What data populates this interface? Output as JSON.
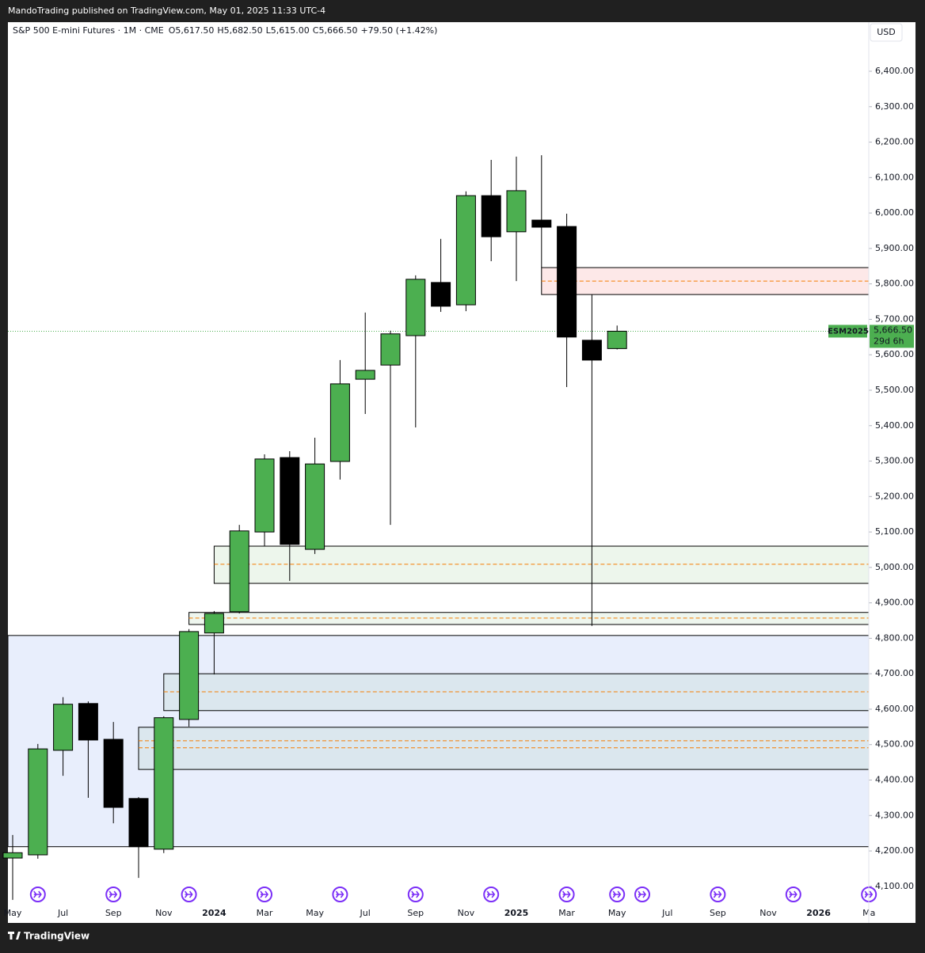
{
  "header": {
    "publisher": "MandoTrading published on TradingView.com, May 01, 2025 11:33 UTC-4"
  },
  "footer": {
    "brand": "TradingView"
  },
  "chart_data": {
    "type": "candlestick",
    "symbol_line": "S&P 500 E-mini Futures · 1M · CME",
    "legend_values": [
      "O5,617.50",
      "H5,682.50",
      "L5,615.00",
      "C5,666.50"
    ],
    "change": "+79.50 (+1.42%)",
    "currency": "USD",
    "price_tag": {
      "symbol": "ESM2025",
      "label": "5,666.50",
      "countdown": "29d 6h"
    },
    "up_color": "#4caf50",
    "down_color": "#000000",
    "categories": [
      "May",
      null,
      "Jul",
      null,
      "Sep",
      null,
      "Nov",
      null,
      "2024",
      null,
      "Mar",
      null,
      "May",
      null,
      "Jul",
      null,
      "Sep",
      null,
      "Nov",
      null,
      "2025",
      null,
      "Mar",
      null,
      "May",
      null,
      "Jul",
      null,
      "Sep",
      null,
      "Nov",
      null,
      "2026",
      null,
      "Ma"
    ],
    "open": [
      4180,
      4189,
      4484,
      4616,
      4515,
      4348,
      4205,
      4571,
      4815,
      4875,
      5100,
      5310,
      5051,
      5299,
      5531,
      5571,
      5654,
      5804,
      5741,
      6049,
      5947,
      5980,
      5962,
      5641,
      5617.5,
      null,
      null,
      null,
      null,
      null,
      null,
      null,
      null,
      null,
      null
    ],
    "high": [
      4245,
      4502,
      4634,
      4622,
      4564,
      4352,
      4580,
      4826,
      4877,
      5120,
      5319,
      5328,
      5366,
      5585,
      5719,
      5668,
      5824,
      5927,
      6061,
      6150,
      6159,
      6163,
      5998,
      5770,
      5682.5,
      null,
      null,
      null,
      null,
      null,
      null,
      null,
      null,
      null,
      null
    ],
    "low": [
      4062,
      4178,
      4412,
      4350,
      4278,
      4124,
      4194,
      4551,
      4698,
      4870,
      5060,
      4962,
      5038,
      5248,
      5433,
      5120,
      5395,
      5721,
      5723,
      5864,
      5808,
      5846,
      5509,
      4835,
      5615,
      null,
      null,
      null,
      null,
      null,
      null,
      null,
      null,
      null,
      null
    ],
    "close": [
      4195,
      4488,
      4614,
      4513,
      4323,
      4212,
      4576,
      4819,
      4870,
      5103,
      5306,
      5065,
      5292,
      5518,
      5556,
      5659,
      5813,
      5737,
      6049,
      5933,
      6063,
      5960,
      5650,
      5585,
      5666.5,
      null,
      null,
      null,
      null,
      null,
      null,
      null,
      null,
      null,
      null
    ],
    "zones": [
      {
        "start": null,
        "top": 4808,
        "bottom": 4212,
        "fill": "#e8eefc",
        "lines": []
      },
      {
        "start": 5,
        "top": 4549,
        "bottom": 4430,
        "fill": "#dbe7ee",
        "lines": [
          4511,
          4491
        ]
      },
      {
        "start": 6,
        "top": 4700,
        "bottom": 4596,
        "fill": "#dbe7ee",
        "lines": [
          4649
        ]
      },
      {
        "start": 7,
        "top": 4873,
        "bottom": 4839,
        "fill": "#eef6ee",
        "lines": [
          4857
        ]
      },
      {
        "start": 8,
        "top": 5060,
        "bottom": 4955,
        "fill": "#edf6ec",
        "lines": [
          5009
        ]
      },
      {
        "start": 21,
        "top": 5846,
        "bottom": 5770,
        "fill": "#fde8e8",
        "lines": [
          5808
        ]
      }
    ],
    "ylim": [
      4055,
      6538.5
    ],
    "yticks": [
      {
        "value": 4100,
        "label": "4,100.00"
      },
      {
        "value": 4200,
        "label": "4,200.00"
      },
      {
        "value": 4300,
        "label": "4,300.00"
      },
      {
        "value": 4400,
        "label": "4,400.00"
      },
      {
        "value": 4500,
        "label": "4,500.00"
      },
      {
        "value": 4600,
        "label": "4,600.00"
      },
      {
        "value": 4700,
        "label": "4,700.00"
      },
      {
        "value": 4800,
        "label": "4,800.00"
      },
      {
        "value": 4900,
        "label": "4,900.00"
      },
      {
        "value": 5000,
        "label": "5,000.00"
      },
      {
        "value": 5100,
        "label": "5,100.00"
      },
      {
        "value": 5200,
        "label": "5,200.00"
      },
      {
        "value": 5300,
        "label": "5,300.00"
      },
      {
        "value": 5400,
        "label": "5,400.00"
      },
      {
        "value": 5500,
        "label": "5,500.00"
      },
      {
        "value": 5600,
        "label": "5,600.00"
      },
      {
        "value": 5700,
        "label": "5,700.00"
      },
      {
        "value": 5800,
        "label": "5,800.00"
      },
      {
        "value": 5900,
        "label": "5,900.00"
      },
      {
        "value": 6000,
        "label": "6,000.00"
      },
      {
        "value": 6100,
        "label": "6,100.00"
      },
      {
        "value": 6200,
        "label": "6,200.00"
      },
      {
        "value": 6300,
        "label": "6,300.00"
      },
      {
        "value": 6400,
        "label": "6,400.00"
      }
    ]
  }
}
